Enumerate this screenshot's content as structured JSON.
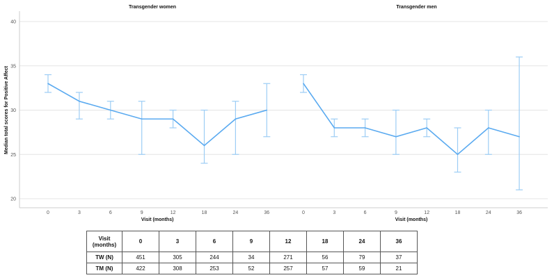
{
  "chart_data": [
    {
      "type": "line",
      "title": "Transgender women",
      "xlabel": "Visit (months)",
      "ylabel": "Median total scores for Positive Affect",
      "categories": [
        "0",
        "3",
        "6",
        "9",
        "12",
        "18",
        "24",
        "36"
      ],
      "values": [
        33,
        31,
        30,
        29,
        29,
        26,
        29,
        30
      ],
      "lower": [
        32,
        29,
        29,
        25,
        28,
        24,
        25,
        27
      ],
      "upper": [
        34,
        32,
        31,
        31,
        30,
        30,
        31,
        33
      ],
      "ylim": [
        20,
        40
      ],
      "yticks": [
        "20",
        "25",
        "30",
        "35",
        "40"
      ],
      "grid": true,
      "color": "#5aaaf0",
      "errcolor": "#9ccdf5"
    },
    {
      "type": "line",
      "title": "Transgender men",
      "xlabel": "Visit (months)",
      "ylabel": "",
      "categories": [
        "0",
        "3",
        "6",
        "9",
        "12",
        "18",
        "24",
        "36"
      ],
      "values": [
        33,
        28,
        28,
        27,
        28,
        25,
        28,
        27
      ],
      "lower": [
        32,
        27,
        27,
        25,
        27,
        23,
        25,
        21
      ],
      "upper": [
        34,
        29,
        29,
        30,
        29,
        28,
        30,
        36
      ],
      "ylim": [
        20,
        40
      ],
      "yticks": [
        "20",
        "25",
        "30",
        "35",
        "40"
      ],
      "grid": true,
      "color": "#5aaaf0",
      "errcolor": "#9ccdf5"
    }
  ],
  "table": {
    "header": [
      "Visit (months)",
      "0",
      "3",
      "6",
      "9",
      "12",
      "18",
      "24",
      "36"
    ],
    "rows": [
      [
        "TW (N)",
        "451",
        "305",
        "244",
        "34",
        "271",
        "56",
        "79",
        "37"
      ],
      [
        "TM (N)",
        "422",
        "308",
        "253",
        "52",
        "257",
        "57",
        "59",
        "21"
      ]
    ]
  }
}
